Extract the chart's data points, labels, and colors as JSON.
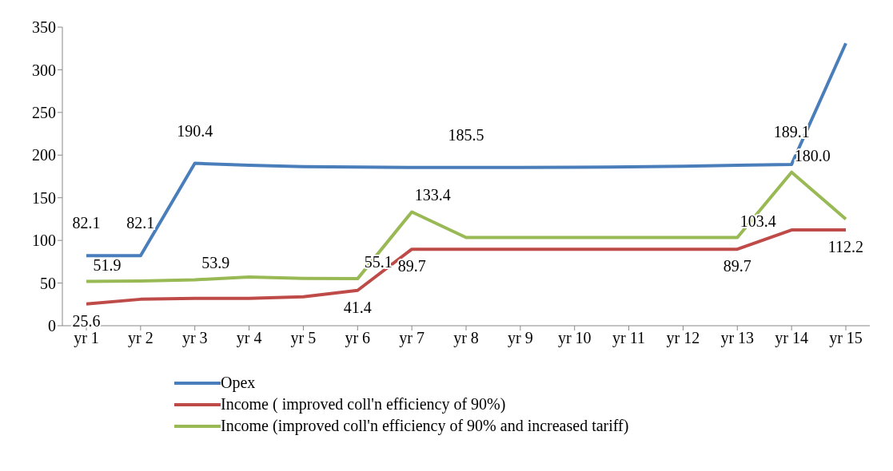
{
  "chart_data": {
    "type": "line",
    "categories": [
      "yr 1",
      "yr 2",
      "yr 3",
      "yr 4",
      "yr 5",
      "yr 6",
      "yr 7",
      "yr 8",
      "yr 9",
      "yr 10",
      "yr 11",
      "yr 12",
      "yr 13",
      "yr 14",
      "yr 15"
    ],
    "series": [
      {
        "name": "Opex",
        "color": "#4a7ebb",
        "values": [
          82.1,
          82.1,
          190.4,
          188,
          186.5,
          186,
          185.5,
          185.5,
          185.5,
          185.7,
          186.3,
          187,
          188,
          189.1,
          331
        ],
        "value_labels": [
          "82.1",
          "82.1",
          "190.4",
          null,
          null,
          null,
          null,
          "185.5",
          null,
          null,
          null,
          null,
          null,
          "189.1",
          null
        ]
      },
      {
        "name": "Income ( improved coll'n efficiency of 90%)",
        "color": "#be4b48",
        "values": [
          25.6,
          31,
          32,
          32,
          34,
          41.4,
          89.7,
          89.7,
          89.7,
          89.7,
          89.7,
          89.7,
          89.7,
          112.2,
          112.2
        ],
        "value_labels": [
          "25.6",
          null,
          null,
          null,
          null,
          "41.4",
          "89.7",
          null,
          null,
          null,
          null,
          null,
          "89.7",
          null,
          "112.2"
        ]
      },
      {
        "name": "Income (improved coll'n efficiency of 90% and increased tariff)",
        "color": "#98b954",
        "values": [
          51.9,
          52.5,
          53.9,
          57,
          55.5,
          55.1,
          133.4,
          103.4,
          103.4,
          103.4,
          103.4,
          103.4,
          103.4,
          180.0,
          125
        ],
        "value_labels": [
          "51.9",
          null,
          "53.9",
          null,
          null,
          "55.1",
          "133.4",
          null,
          null,
          null,
          null,
          null,
          "103.4",
          "180.0",
          null
        ]
      }
    ],
    "ylim": [
      0,
      350
    ],
    "yticks": [
      0,
      50,
      100,
      150,
      200,
      250,
      300,
      350
    ],
    "grid": false,
    "legend": "bottom",
    "marker": "none",
    "line_style": "solid"
  }
}
